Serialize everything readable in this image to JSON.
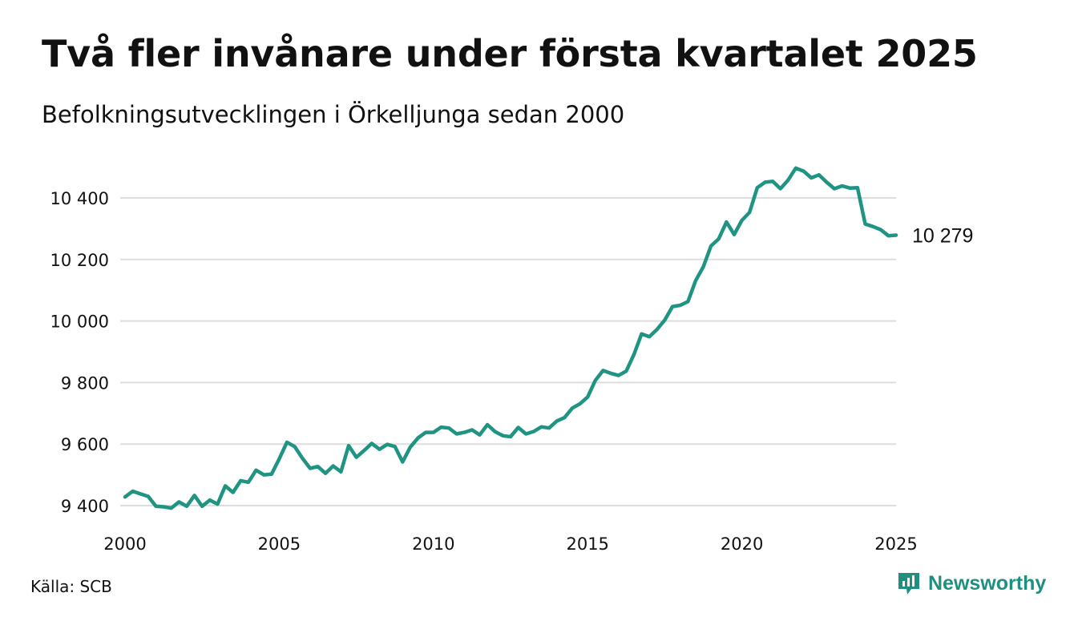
{
  "title": "Två fler invånare under första kvartalet 2025",
  "subtitle": "Befolkningsutvecklingen i Örkelljunga sedan 2000",
  "source": "Källa: SCB",
  "brand": {
    "name": "Newsworthy",
    "logo_icon": "bar-chart-speech-bubble-icon",
    "color": "#1f8f7f"
  },
  "colors": {
    "line": "#1f9483",
    "grid": "#dddddd",
    "text": "#111111"
  },
  "chart_data": {
    "type": "line",
    "title": "Två fler invånare under första kvartalet 2025",
    "subtitle": "Befolkningsutvecklingen i Örkelljunga sedan 2000",
    "xlabel": "",
    "ylabel": "",
    "xlim": [
      2000,
      2025
    ],
    "ylim": [
      9380,
      10520
    ],
    "x_ticks": [
      2000,
      2005,
      2010,
      2015,
      2020,
      2025
    ],
    "x_tick_labels": [
      "2000",
      "2005",
      "2010",
      "2015",
      "2020",
      "2025"
    ],
    "y_ticks": [
      9400,
      9600,
      9800,
      10000,
      10200,
      10400
    ],
    "y_tick_labels": [
      "9 400",
      "9 600",
      "9 800",
      "10 000",
      "10 200",
      "10 400"
    ],
    "grid": true,
    "legend": "none",
    "end_label": "10 279",
    "series": [
      {
        "values": [
          [
            2000.0,
            9428
          ],
          [
            2000.25,
            9447
          ],
          [
            2000.5,
            9438
          ],
          [
            2000.75,
            9430
          ],
          [
            2001.0,
            9398
          ],
          [
            2001.25,
            9396
          ],
          [
            2001.5,
            9392
          ],
          [
            2001.75,
            9412
          ],
          [
            2002.0,
            9398
          ],
          [
            2002.25,
            9433
          ],
          [
            2002.5,
            9398
          ],
          [
            2002.75,
            9418
          ],
          [
            2003.0,
            9405
          ],
          [
            2003.25,
            9464
          ],
          [
            2003.5,
            9443
          ],
          [
            2003.75,
            9481
          ],
          [
            2004.0,
            9476
          ],
          [
            2004.25,
            9515
          ],
          [
            2004.5,
            9500
          ],
          [
            2004.75,
            9502
          ],
          [
            2005.0,
            9552
          ],
          [
            2005.25,
            9606
          ],
          [
            2005.5,
            9592
          ],
          [
            2005.75,
            9554
          ],
          [
            2006.0,
            9521
          ],
          [
            2006.25,
            9527
          ],
          [
            2006.5,
            9505
          ],
          [
            2006.75,
            9529
          ],
          [
            2007.0,
            9510
          ],
          [
            2007.25,
            9595
          ],
          [
            2007.5,
            9557
          ],
          [
            2007.75,
            9579
          ],
          [
            2008.0,
            9602
          ],
          [
            2008.25,
            9583
          ],
          [
            2008.5,
            9599
          ],
          [
            2008.75,
            9592
          ],
          [
            2009.0,
            9542
          ],
          [
            2009.25,
            9590
          ],
          [
            2009.5,
            9620
          ],
          [
            2009.75,
            9638
          ],
          [
            2010.0,
            9638
          ],
          [
            2010.25,
            9655
          ],
          [
            2010.5,
            9652
          ],
          [
            2010.75,
            9633
          ],
          [
            2011.0,
            9638
          ],
          [
            2011.25,
            9646
          ],
          [
            2011.5,
            9630
          ],
          [
            2011.75,
            9663
          ],
          [
            2012.0,
            9640
          ],
          [
            2012.25,
            9627
          ],
          [
            2012.5,
            9624
          ],
          [
            2012.75,
            9654
          ],
          [
            2013.0,
            9633
          ],
          [
            2013.25,
            9641
          ],
          [
            2013.5,
            9656
          ],
          [
            2013.75,
            9652
          ],
          [
            2014.0,
            9675
          ],
          [
            2014.25,
            9686
          ],
          [
            2014.5,
            9717
          ],
          [
            2014.75,
            9731
          ],
          [
            2015.0,
            9753
          ],
          [
            2015.25,
            9807
          ],
          [
            2015.5,
            9839
          ],
          [
            2015.75,
            9830
          ],
          [
            2016.0,
            9823
          ],
          [
            2016.25,
            9837
          ],
          [
            2016.5,
            9891
          ],
          [
            2016.75,
            9958
          ],
          [
            2017.0,
            9949
          ],
          [
            2017.25,
            9973
          ],
          [
            2017.5,
            10003
          ],
          [
            2017.75,
            10047
          ],
          [
            2018.0,
            10051
          ],
          [
            2018.25,
            10063
          ],
          [
            2018.5,
            10131
          ],
          [
            2018.75,
            10176
          ],
          [
            2019.0,
            10244
          ],
          [
            2019.25,
            10267
          ],
          [
            2019.5,
            10322
          ],
          [
            2019.75,
            10281
          ],
          [
            2020.0,
            10327
          ],
          [
            2020.25,
            10353
          ],
          [
            2020.5,
            10433
          ],
          [
            2020.75,
            10451
          ],
          [
            2021.0,
            10454
          ],
          [
            2021.25,
            10430
          ],
          [
            2021.5,
            10458
          ],
          [
            2021.75,
            10497
          ],
          [
            2022.0,
            10487
          ],
          [
            2022.25,
            10465
          ],
          [
            2022.5,
            10475
          ],
          [
            2022.75,
            10451
          ],
          [
            2023.0,
            10430
          ],
          [
            2023.25,
            10439
          ],
          [
            2023.5,
            10432
          ],
          [
            2023.75,
            10433
          ],
          [
            2024.0,
            10315
          ],
          [
            2024.25,
            10307
          ],
          [
            2024.5,
            10297
          ],
          [
            2024.75,
            10277
          ],
          [
            2025.0,
            10279
          ]
        ]
      }
    ]
  }
}
